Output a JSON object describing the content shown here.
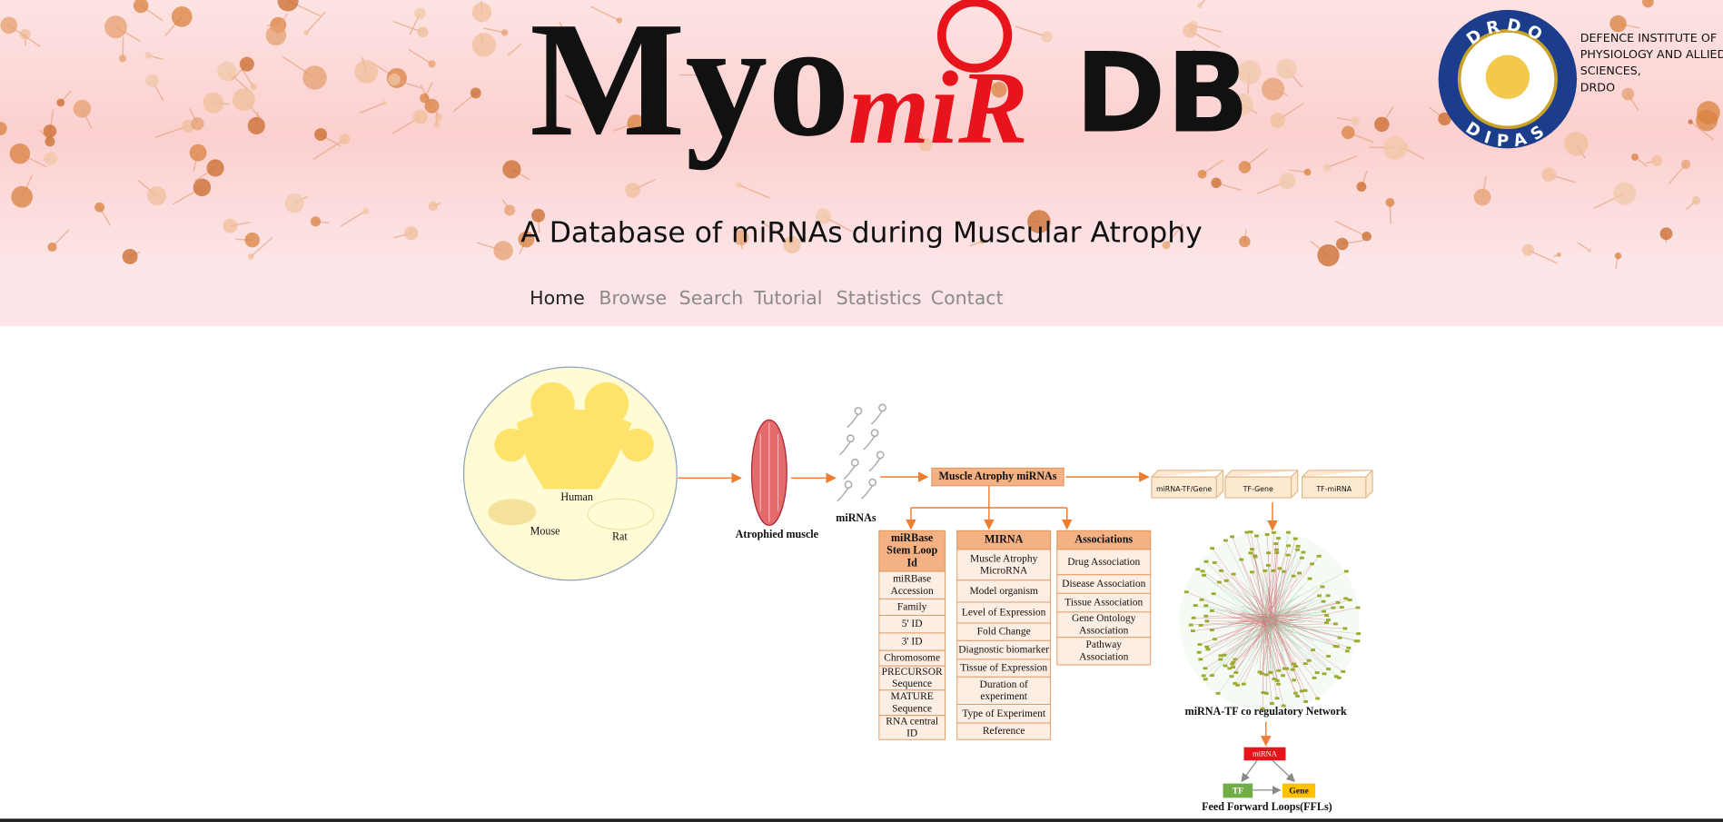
{
  "header": {
    "logo": {
      "myo": "Myo",
      "mir": "miR",
      "db": "DB"
    },
    "subtitle": "A Database of miRNAs during Muscular Atrophy",
    "organization": [
      "DEFENCE INSTITUTE OF",
      "PHYSIOLOGY AND ALLIED",
      "SCIENCES,",
      "DRDO"
    ],
    "emblem": {
      "top": "DRDO",
      "bottom": "DIPAS"
    }
  },
  "nav": [
    "Home",
    "Browse",
    "Search",
    "Tutorial",
    "Statistics",
    "Contact"
  ],
  "diagram": {
    "organisms": [
      "Human",
      "Mouse",
      "Rat"
    ],
    "muscle_label": "Atrophied muscle",
    "mirnas_label": "miRNAs",
    "central": "Muscle Atrophy miRNAs",
    "networks": [
      "miRNA-TF/Gene",
      "TF-Gene",
      "TF-miRNA"
    ],
    "columns": [
      {
        "header": [
          "miRBase",
          "Stem Loop",
          "Id"
        ],
        "items": [
          [
            "miRBase",
            "Accession"
          ],
          [
            "Family"
          ],
          [
            "5' ID"
          ],
          [
            "3' ID"
          ],
          [
            "Chromosome"
          ],
          [
            "PRECURSOR",
            "Sequence"
          ],
          [
            "MATURE",
            "Sequence"
          ],
          [
            "RNA central",
            "ID"
          ]
        ]
      },
      {
        "header": [
          "MIRNA"
        ],
        "items": [
          [
            "Muscle Atrophy",
            "MicroRNA"
          ],
          [
            "Model organism"
          ],
          [
            "Level of Expression"
          ],
          [
            "Fold Change"
          ],
          [
            "Diagnostic biomarker"
          ],
          [
            "Tissue of Expression"
          ],
          [
            "Duration of",
            "experiment"
          ],
          [
            "Type of Experiment"
          ],
          [
            "Reference"
          ]
        ]
      },
      {
        "header": [
          "Associations"
        ],
        "items": [
          [
            "Drug Association"
          ],
          [
            "Disease Association"
          ],
          [
            "Tissue Association"
          ],
          [
            "Gene Ontology",
            "Association"
          ],
          [
            "Pathway",
            "Association"
          ]
        ]
      }
    ],
    "network_label": "miRNA-TF co regulatory Network",
    "ffl": {
      "mirna": "miRNA",
      "tf": "TF",
      "gene": "Gene",
      "label": "Feed Forward Loops(FFLs)"
    }
  }
}
